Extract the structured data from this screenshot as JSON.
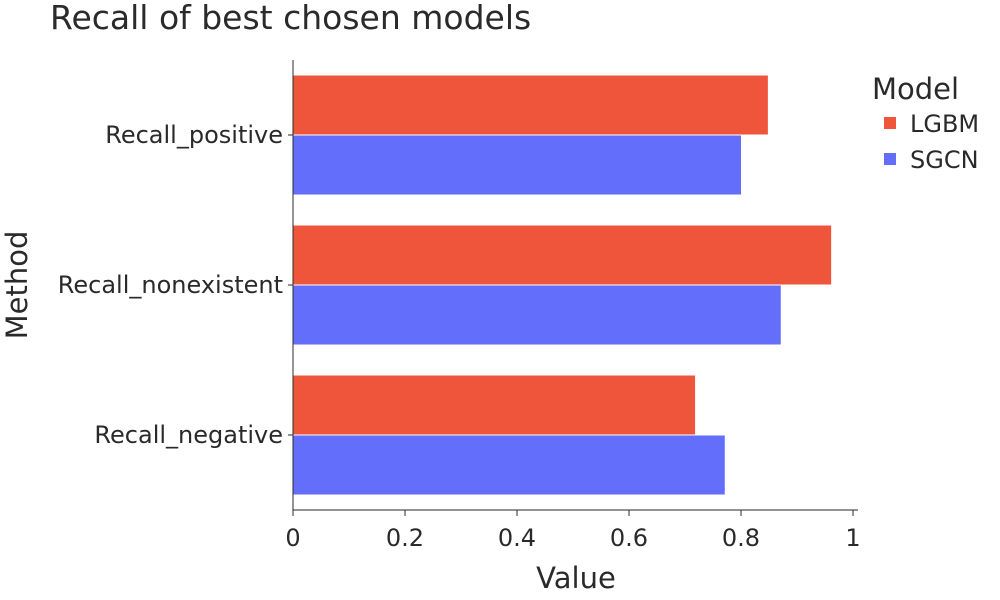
{
  "chart_data": {
    "type": "bar",
    "orientation": "horizontal",
    "title": "Recall of best chosen models",
    "xlabel": "Value",
    "ylabel": "Method",
    "xlim": [
      0,
      1
    ],
    "xticks": [
      "0",
      "0.2",
      "0.4",
      "0.6",
      "0.8",
      "1"
    ],
    "xtick_values": [
      0,
      0.2,
      0.4,
      0.6,
      0.8,
      1
    ],
    "categories": [
      "Recall_positive",
      "Recall_nonexistent",
      "Recall_negative"
    ],
    "legend_title": "Model",
    "legend_position": "top-right",
    "grid": false,
    "series": [
      {
        "name": "LGBM",
        "color": "#EF553B",
        "values": [
          0.848,
          0.961,
          0.718
        ]
      },
      {
        "name": "SGCN",
        "color": "#636EFA",
        "values": [
          0.8,
          0.871,
          0.771
        ]
      }
    ]
  }
}
